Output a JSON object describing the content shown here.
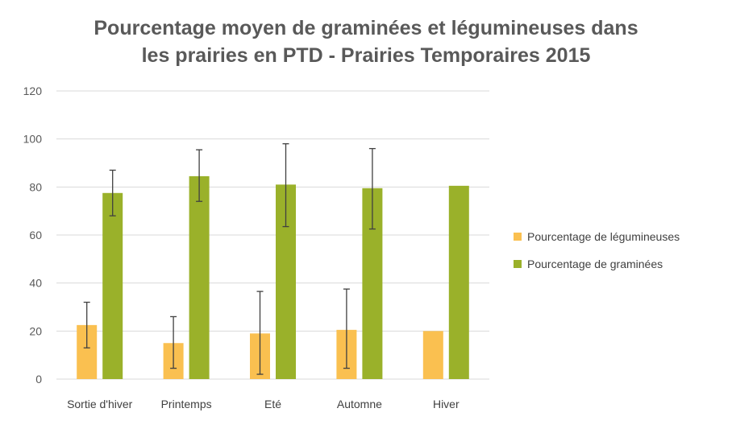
{
  "chart_data": {
    "type": "bar",
    "title_lines": [
      "Pourcentage moyen de graminées et légumineuses dans",
      "les prairies en PTD -  Prairies  Temporaires 2015"
    ],
    "categories": [
      "Sortie d'hiver",
      "Printemps",
      "Eté",
      "Automne",
      "Hiver"
    ],
    "ylim": [
      0,
      120
    ],
    "yticks": [
      0,
      20,
      40,
      60,
      80,
      100,
      120
    ],
    "grid": true,
    "legend_position": "right",
    "series": [
      {
        "name": "Pourcentage de légumineuses",
        "color": "#FAC050",
        "values": [
          22.5,
          15,
          19,
          20.5,
          20
        ],
        "error_low": [
          13,
          4.5,
          2,
          4.5,
          null
        ],
        "error_high": [
          32,
          26,
          36.5,
          37.5,
          null
        ]
      },
      {
        "name": "Pourcentage de graminées",
        "color": "#9AB12A",
        "values": [
          77.5,
          84.5,
          81,
          79.5,
          80.5
        ],
        "error_low": [
          68,
          74,
          63.5,
          62.5,
          null
        ],
        "error_high": [
          87,
          95.5,
          98,
          96,
          null
        ]
      }
    ]
  }
}
